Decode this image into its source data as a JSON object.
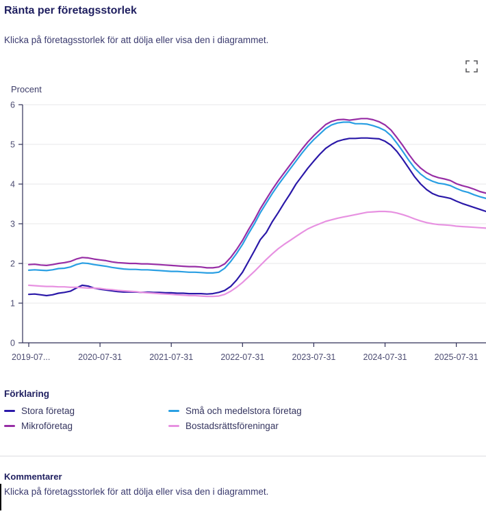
{
  "header": {
    "title": "Ränta per företagsstorlek",
    "subtitle": "Klicka på företagsstorlek för att dölja eller visa den i diagrammet."
  },
  "toolbar": {
    "fullscreen_icon": "fullscreen-expand-icon"
  },
  "colors": {
    "stora_foretag": "#2a18a8",
    "sma_och_medelstora_foretag": "#299fe3",
    "mikroforetag": "#972da5",
    "bostadsrattsforeningar": "#e791e1",
    "heading_text": "#1e1e5f",
    "body_text": "#3a3a6e",
    "axis_line": "#2e2e56",
    "axis_text": "#4c4c72",
    "gridline": "#e7e7ea"
  },
  "chart_data": {
    "type": "line",
    "title": "Ränta per företagsstorlek",
    "xlabel": "",
    "ylabel": "Procent",
    "ylim": [
      0,
      6
    ],
    "yticks": [
      0,
      1,
      2,
      3,
      4,
      5,
      6
    ],
    "grid": true,
    "legend_position": "bottom",
    "x_frequency": "monthly",
    "points_per_year": 12,
    "xtick_labels": [
      "2019-07...",
      "2020-07-31",
      "2021-07-31",
      "2022-07-31",
      "2023-07-31",
      "2024-07-31",
      "2025-07-31"
    ],
    "series": [
      {
        "name": "Stora företag",
        "color": "#2a18a8",
        "values": [
          1.22,
          1.23,
          1.21,
          1.19,
          1.21,
          1.25,
          1.27,
          1.3,
          1.38,
          1.45,
          1.43,
          1.38,
          1.35,
          1.33,
          1.31,
          1.29,
          1.28,
          1.28,
          1.28,
          1.27,
          1.28,
          1.27,
          1.27,
          1.26,
          1.26,
          1.25,
          1.25,
          1.24,
          1.24,
          1.24,
          1.23,
          1.24,
          1.27,
          1.32,
          1.42,
          1.58,
          1.78,
          2.05,
          2.32,
          2.6,
          2.78,
          3.05,
          3.28,
          3.52,
          3.75,
          4.0,
          4.2,
          4.4,
          4.58,
          4.75,
          4.9,
          5.0,
          5.08,
          5.12,
          5.15,
          5.15,
          5.16,
          5.16,
          5.15,
          5.14,
          5.08,
          4.98,
          4.82,
          4.62,
          4.4,
          4.18,
          4.0,
          3.86,
          3.76,
          3.7,
          3.67,
          3.64,
          3.57,
          3.51,
          3.46,
          3.41,
          3.36,
          3.31
        ]
      },
      {
        "name": "Små och medelstora företag",
        "color": "#299fe3",
        "values": [
          1.83,
          1.84,
          1.83,
          1.82,
          1.84,
          1.87,
          1.88,
          1.91,
          1.97,
          2.01,
          2.0,
          1.97,
          1.95,
          1.93,
          1.9,
          1.88,
          1.86,
          1.85,
          1.85,
          1.84,
          1.84,
          1.83,
          1.82,
          1.81,
          1.8,
          1.8,
          1.79,
          1.78,
          1.78,
          1.77,
          1.76,
          1.76,
          1.78,
          1.88,
          2.05,
          2.25,
          2.48,
          2.75,
          3.0,
          3.28,
          3.52,
          3.76,
          3.98,
          4.18,
          4.38,
          4.58,
          4.78,
          4.96,
          5.12,
          5.26,
          5.4,
          5.49,
          5.54,
          5.56,
          5.56,
          5.52,
          5.52,
          5.51,
          5.47,
          5.42,
          5.35,
          5.22,
          5.03,
          4.82,
          4.6,
          4.4,
          4.25,
          4.14,
          4.07,
          4.02,
          4.0,
          3.96,
          3.89,
          3.83,
          3.79,
          3.73,
          3.68,
          3.64
        ]
      },
      {
        "name": "Mikroföretag",
        "color": "#972da5",
        "values": [
          1.97,
          1.98,
          1.96,
          1.95,
          1.97,
          2.0,
          2.02,
          2.05,
          2.11,
          2.15,
          2.14,
          2.11,
          2.09,
          2.07,
          2.04,
          2.02,
          2.01,
          2.0,
          2.0,
          1.99,
          1.99,
          1.98,
          1.97,
          1.96,
          1.95,
          1.94,
          1.93,
          1.92,
          1.92,
          1.91,
          1.89,
          1.89,
          1.91,
          1.99,
          2.15,
          2.35,
          2.58,
          2.85,
          3.1,
          3.38,
          3.62,
          3.86,
          4.08,
          4.28,
          4.48,
          4.68,
          4.88,
          5.06,
          5.22,
          5.36,
          5.5,
          5.58,
          5.62,
          5.63,
          5.61,
          5.63,
          5.65,
          5.65,
          5.62,
          5.57,
          5.49,
          5.36,
          5.17,
          4.97,
          4.75,
          4.55,
          4.4,
          4.29,
          4.21,
          4.16,
          4.13,
          4.09,
          4.01,
          3.96,
          3.92,
          3.87,
          3.81,
          3.77
        ]
      },
      {
        "name": "Bostadsrättsföreningar",
        "color": "#e791e1",
        "values": [
          1.45,
          1.44,
          1.43,
          1.42,
          1.42,
          1.41,
          1.41,
          1.4,
          1.4,
          1.39,
          1.38,
          1.38,
          1.37,
          1.35,
          1.34,
          1.32,
          1.31,
          1.3,
          1.29,
          1.27,
          1.26,
          1.25,
          1.24,
          1.23,
          1.22,
          1.21,
          1.2,
          1.19,
          1.19,
          1.18,
          1.17,
          1.17,
          1.18,
          1.22,
          1.3,
          1.4,
          1.52,
          1.66,
          1.8,
          1.95,
          2.1,
          2.24,
          2.37,
          2.48,
          2.58,
          2.68,
          2.78,
          2.87,
          2.94,
          3.0,
          3.06,
          3.1,
          3.14,
          3.17,
          3.2,
          3.23,
          3.26,
          3.29,
          3.3,
          3.31,
          3.31,
          3.3,
          3.27,
          3.23,
          3.18,
          3.12,
          3.07,
          3.03,
          3.0,
          2.98,
          2.97,
          2.96,
          2.94,
          2.93,
          2.92,
          2.91,
          2.9,
          2.89
        ]
      }
    ]
  },
  "legend": {
    "heading": "Förklaring",
    "items": [
      {
        "label": "Stora företag",
        "color": "#2a18a8"
      },
      {
        "label": "Små och medelstora företag",
        "color": "#299fe3"
      },
      {
        "label": "Mikroföretag",
        "color": "#972da5"
      },
      {
        "label": "Bostadsrättsföreningar",
        "color": "#e791e1"
      }
    ]
  },
  "comments": {
    "heading": "Kommentarer",
    "text": "Klicka på företagsstorlek för att dölja eller visa den i diagrammet."
  }
}
